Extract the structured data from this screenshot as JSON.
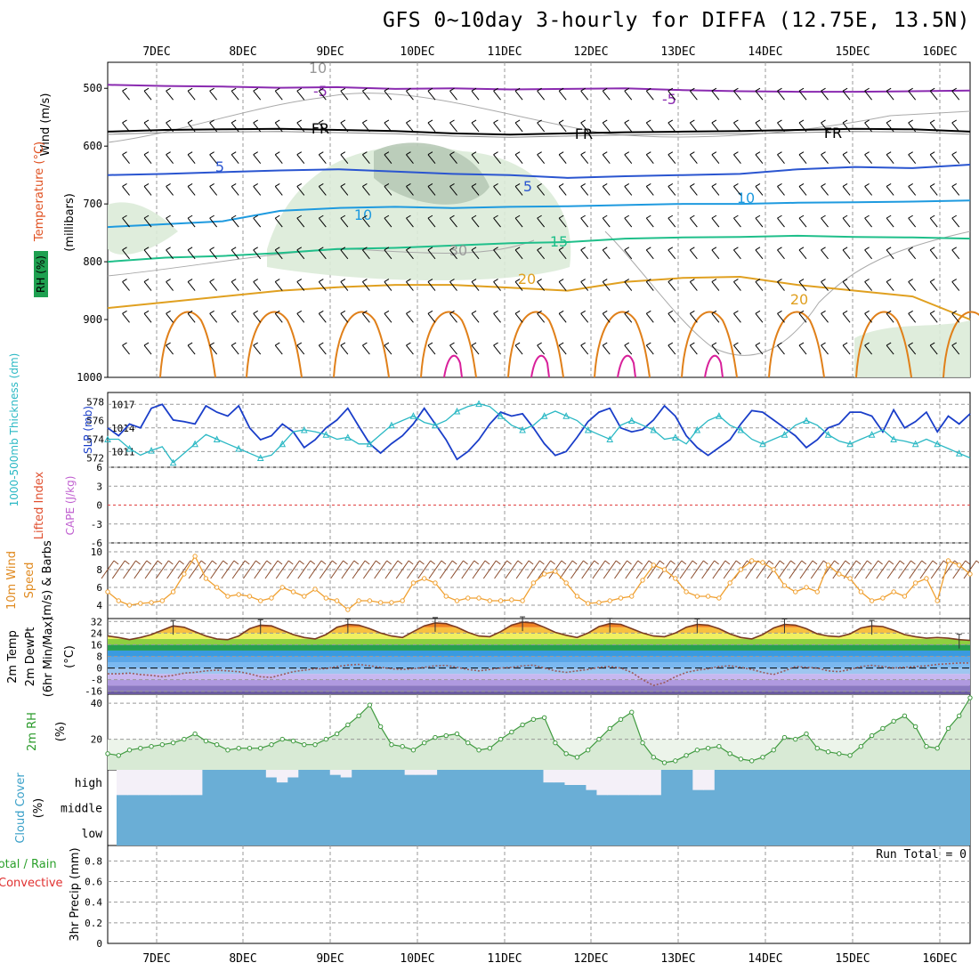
{
  "title": "GFS 0~10day 3-hourly for DIFFA (12.75E, 13.5N)",
  "colors": {
    "grid": "#999999",
    "sea_level_pressure": "#1a3ec9",
    "thickness": "#2ab8c4",
    "wind_speed": "#f0a030",
    "barb": "#8a4a2a",
    "temp_line": "#7a3a20",
    "dewpoint": "#9a5a5a",
    "rh": "#3f9a3f",
    "rh_fill": "#d8ead5",
    "cloud": "#6aaed6",
    "cloud_clear": "#f4f0f8",
    "cape_zero_line": "#e04040"
  },
  "axis_labels": {
    "panel1_wind": "Wind (m/s)",
    "panel1_temp": "Temperature (°C)",
    "panel1_rh": "RH (%)",
    "panel1_mb": "(millibars)",
    "panel2_thick": "1000-500mb Thickness (dm)",
    "panel2_slp": "SLP (mb)",
    "panel3_li": "Lifted Index",
    "panel3_cape": "CAPE (J/kg)",
    "panel4_wind": "10m Wind",
    "panel4_speed": "Speed",
    "panel4_barbs": "(m/s) & Barbs",
    "panel5_temp": "2m Temp",
    "panel5_dew": "2m DewPt",
    "panel5_minmax": "(6hr Min/Max)",
    "panel5_unit": "(°C)",
    "panel6_rh": "2m RH",
    "panel6_unit": "(%)",
    "panel7_cloud": "Cloud Cover",
    "panel7_unit": "(%)",
    "panel8_total": "Total / Rain",
    "panel8_conv": "Convective",
    "panel8_precip": "3hr Precip (mm)",
    "run_total": "Run Total = 0"
  },
  "chart_data": {
    "type": "line",
    "x_dates": [
      "7DEC",
      "8DEC",
      "9DEC",
      "10DEC",
      "11DEC",
      "12DEC",
      "13DEC",
      "14DEC",
      "15DEC",
      "16DEC"
    ],
    "steps_per_day": 8,
    "n_steps": 80,
    "profile": {
      "pressure_ticks": [
        500,
        600,
        700,
        800,
        900,
        1000
      ],
      "contour_labels": [
        "-5",
        "FR",
        "5",
        "10",
        "15",
        "20",
        "10",
        "30"
      ],
      "isotherms": [
        {
          "label": "-5",
          "levels": [
            494,
            496,
            497,
            499,
            498,
            501,
            500,
            502,
            501,
            500,
            503,
            505,
            506,
            506,
            505,
            504
          ]
        },
        {
          "label": "FR",
          "levels": [
            575,
            572,
            571,
            570,
            572,
            574,
            578,
            580,
            578,
            576,
            575,
            574,
            572,
            570,
            571,
            575
          ]
        },
        {
          "label": "5",
          "levels": [
            650,
            648,
            645,
            642,
            640,
            644,
            648,
            650,
            655,
            652,
            650,
            648,
            640,
            636,
            638,
            632
          ]
        },
        {
          "label": "10",
          "levels": [
            740,
            735,
            730,
            712,
            707,
            705,
            707,
            705,
            704,
            702,
            700,
            700,
            698,
            697,
            696,
            694
          ]
        },
        {
          "label": "15",
          "levels": [
            800,
            793,
            790,
            785,
            778,
            776,
            772,
            768,
            766,
            760,
            758,
            757,
            755,
            757,
            758,
            760
          ]
        },
        {
          "label": "20",
          "levels": [
            880,
            870,
            860,
            850,
            844,
            840,
            840,
            845,
            850,
            835,
            828,
            826,
            840,
            850,
            860,
            900
          ]
        }
      ]
    },
    "slp": {
      "label": "SLP (mb)",
      "ticks": [
        1011,
        1014,
        1017
      ],
      "ylim": [
        1009,
        1018.5
      ],
      "values": [
        1014.0,
        1013.0,
        1014.5,
        1014.0,
        1016.5,
        1017.0,
        1015.0,
        1014.8,
        1014.5,
        1016.8,
        1016.0,
        1015.5,
        1016.8,
        1014.0,
        1012.5,
        1013.0,
        1014.5,
        1013.5,
        1011.5,
        1012.5,
        1014.0,
        1015.0,
        1016.5,
        1014.2,
        1012.0,
        1010.8,
        1012.0,
        1013.0,
        1014.5,
        1016.5,
        1014.5,
        1012.5,
        1010.0,
        1011.0,
        1012.5,
        1014.5,
        1016.0,
        1015.5,
        1015.8,
        1014.0,
        1012.0,
        1010.5,
        1011.0,
        1012.8,
        1014.8,
        1016.0,
        1016.5,
        1014.0,
        1013.5,
        1013.8,
        1015.0,
        1016.8,
        1015.5,
        1013.0,
        1011.5,
        1010.5,
        1011.5,
        1012.5,
        1014.5,
        1016.2,
        1016.0,
        1015.0,
        1014.0,
        1013.0,
        1011.5,
        1012.5,
        1014.0,
        1014.5,
        1016.0,
        1016.0,
        1015.5,
        1013.5,
        1016.3,
        1014.0,
        1014.8,
        1016.0,
        1013.5,
        1015.5,
        1014.5,
        1015.8
      ]
    },
    "thickness": {
      "label": "1000-500mb Thickness (dm)",
      "ticks": [
        572,
        574,
        576,
        578
      ],
      "ylim": [
        571,
        579
      ],
      "values": [
        574.0,
        574.0,
        573.0,
        572.3,
        572.8,
        573.2,
        571.5,
        572.5,
        573.5,
        574.5,
        574.0,
        573.5,
        573.0,
        572.5,
        572.0,
        572.3,
        573.5,
        574.8,
        575.0,
        574.8,
        574.5,
        574.0,
        574.2,
        573.5,
        573.5,
        574.5,
        575.5,
        576.0,
        576.5,
        575.8,
        575.5,
        576.0,
        577.0,
        577.5,
        577.8,
        577.5,
        576.5,
        575.5,
        575.0,
        575.5,
        576.5,
        577.0,
        576.5,
        576.0,
        575.0,
        574.5,
        574.0,
        575.5,
        576.0,
        575.5,
        575.0,
        574.0,
        574.2,
        573.5,
        575.0,
        576.0,
        576.5,
        575.5,
        575.0,
        574.0,
        573.5,
        574.0,
        574.5,
        575.5,
        576.0,
        575.5,
        574.5,
        573.8,
        573.5,
        574.0,
        574.5,
        575.0,
        574.0,
        573.8,
        573.5,
        574.0,
        573.5,
        573.0,
        572.5,
        572.0
      ]
    },
    "lifted_index": {
      "ticks": [
        -6,
        -3,
        0,
        3,
        6
      ],
      "ylim": [
        -6,
        6
      ],
      "values": []
    },
    "wind10m": {
      "label": "Speed (m/s)",
      "ticks": [
        4,
        6,
        8,
        10
      ],
      "ylim": [
        2.5,
        11
      ],
      "values": [
        5.5,
        4.5,
        4.0,
        4.2,
        4.3,
        4.5,
        5.5,
        7.5,
        9.5,
        7.0,
        6.0,
        5.0,
        5.2,
        5.0,
        4.5,
        4.8,
        6.0,
        5.5,
        5.0,
        5.8,
        4.8,
        4.5,
        3.5,
        4.5,
        4.5,
        4.3,
        4.3,
        4.5,
        6.5,
        7.0,
        6.5,
        5.0,
        4.5,
        4.8,
        4.8,
        4.5,
        4.5,
        4.6,
        4.5,
        6.5,
        7.5,
        7.8,
        6.5,
        5.0,
        4.2,
        4.3,
        4.5,
        4.8,
        5.0,
        6.8,
        8.5,
        8.0,
        7.0,
        5.5,
        5.0,
        5.0,
        4.8,
        6.5,
        8.0,
        9.0,
        8.8,
        8.0,
        6.2,
        5.5,
        6.0,
        5.5,
        8.5,
        7.5,
        7.0,
        5.5,
        4.5,
        4.8,
        5.5,
        5.0,
        6.5,
        7.0,
        4.5,
        9.0,
        8.5,
        7.5
      ]
    },
    "temp2m": {
      "ticks": [
        -16,
        -8,
        0,
        8,
        16,
        24,
        32
      ],
      "ylim": [
        -18,
        34
      ],
      "temp": [
        22.0,
        21.0,
        19.5,
        21.0,
        23.0,
        26.0,
        29.0,
        28.0,
        25.0,
        22.0,
        20.0,
        19.5,
        22.0,
        27.0,
        29.5,
        29.0,
        26.0,
        23.0,
        21.0,
        20.0,
        23.0,
        28.0,
        30.0,
        29.5,
        27.0,
        24.0,
        22.0,
        21.0,
        25.0,
        29.0,
        31.0,
        30.5,
        28.0,
        24.5,
        22.0,
        21.5,
        25.0,
        29.5,
        31.5,
        31.0,
        28.0,
        24.5,
        22.5,
        21.0,
        24.0,
        28.5,
        30.5,
        30.0,
        27.0,
        24.0,
        22.0,
        21.5,
        24.0,
        28.0,
        30.0,
        29.5,
        27.0,
        23.5,
        21.0,
        20.0,
        23.0,
        27.5,
        30.0,
        29.5,
        27.0,
        23.5,
        22.0,
        21.5,
        23.5,
        27.5,
        29.0,
        28.5,
        26.0,
        23.0,
        21.5,
        20.5,
        21.0,
        20.5,
        19.5,
        19.0
      ],
      "dewpoint": [
        -4.0,
        -4.0,
        -3.5,
        -4.5,
        -5.0,
        -6.0,
        -5.0,
        -3.5,
        -3.0,
        -2.0,
        -1.5,
        -2.0,
        -2.5,
        -4.0,
        -6.0,
        -6.5,
        -4.5,
        -2.5,
        -1.5,
        -0.5,
        -0.5,
        1.0,
        2.0,
        2.5,
        1.5,
        0.5,
        -0.5,
        -1.0,
        -0.5,
        0.5,
        1.5,
        1.8,
        0.5,
        -1.0,
        -2.0,
        -1.0,
        0.0,
        0.5,
        1.5,
        2.0,
        0.0,
        -2.0,
        -3.0,
        -2.0,
        -1.0,
        0.5,
        1.0,
        0.0,
        -3.0,
        -8.0,
        -12.0,
        -10.0,
        -6.0,
        -3.0,
        -1.5,
        -0.5,
        1.0,
        1.5,
        0.5,
        -1.0,
        -3.0,
        -4.5,
        -2.0,
        1.0,
        0.5,
        0.0,
        -2.0,
        -2.5,
        -1.0,
        1.0,
        1.8,
        1.0,
        0.0,
        0.5,
        1.0,
        1.5,
        2.5,
        3.0,
        3.5,
        3.5
      ]
    },
    "rh2m": {
      "label": "2m RH (%)",
      "ticks": [
        20,
        40
      ],
      "ylim": [
        3,
        45
      ],
      "values": [
        12,
        11,
        14,
        15,
        16,
        17,
        18,
        20,
        23,
        19,
        17,
        14,
        15,
        15,
        15,
        17,
        20,
        19,
        17,
        17,
        20,
        23,
        28,
        33,
        39,
        27,
        17,
        16,
        14,
        18,
        21,
        22,
        23,
        18,
        14,
        15,
        20,
        24,
        28,
        31,
        32,
        18,
        12,
        10,
        14,
        20,
        26,
        31,
        35,
        18,
        10,
        7,
        8,
        11,
        14,
        15,
        16,
        12,
        9,
        8,
        10,
        14,
        21,
        20,
        23,
        15,
        13,
        12,
        11,
        16,
        22,
        26,
        30,
        33,
        27,
        16,
        15,
        26,
        33,
        43
      ]
    },
    "cloud_cover": {
      "labels": [
        "high",
        "middle",
        "low"
      ],
      "high_clear_fraction": [
        1,
        1,
        1,
        1,
        1,
        1,
        1,
        1,
        0,
        0,
        0,
        0,
        0,
        0,
        0.3,
        0.5,
        0.3,
        0,
        0,
        0,
        0.2,
        0.3,
        0,
        0,
        0,
        0,
        0,
        0.2,
        0.2,
        0.2,
        0,
        0,
        0,
        0,
        0,
        0,
        0,
        0,
        0,
        0,
        0.5,
        0.5,
        0.6,
        0.6,
        0.8,
        1,
        1,
        1,
        1,
        1,
        1,
        0,
        0,
        0,
        0.8,
        0.8,
        0,
        0,
        0,
        0,
        0,
        0,
        0,
        0,
        0,
        0,
        0,
        0,
        0,
        0,
        0,
        0,
        0,
        0,
        0,
        0,
        0,
        0,
        0,
        0
      ]
    },
    "precip": {
      "label": "3hr Precip (mm)",
      "ticks": [
        0,
        0.2,
        0.4,
        0.6,
        0.8
      ],
      "ylim": [
        0,
        0.95
      ],
      "values": []
    }
  }
}
